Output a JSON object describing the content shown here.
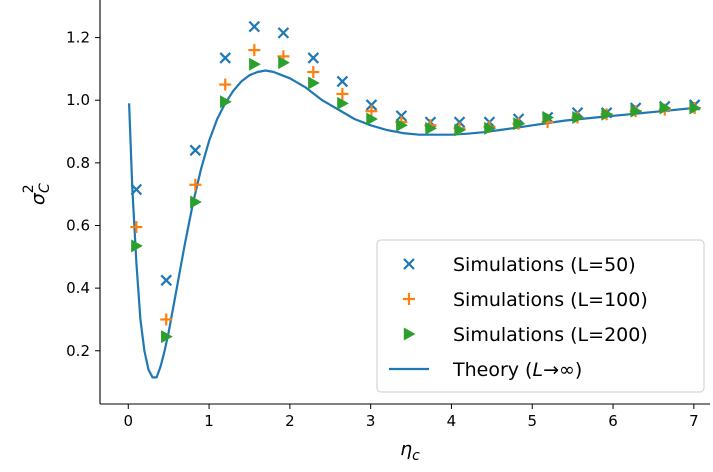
{
  "chart_data": {
    "type": "scatter",
    "xlabel": "η_c",
    "ylabel": "σ_C^2",
    "xlim": [
      -0.35,
      7.2
    ],
    "ylim": [
      0.03,
      1.32
    ],
    "x_ticks": [
      0,
      1,
      2,
      3,
      4,
      5,
      6,
      7
    ],
    "y_ticks": [
      0.2,
      0.4,
      0.6,
      0.8,
      1.0,
      1.2
    ],
    "x_tick_labels": [
      "0",
      "1",
      "2",
      "3",
      "4",
      "5",
      "6",
      "7"
    ],
    "y_tick_labels": [
      "0.2",
      "0.4",
      "0.6",
      "0.8",
      "1.0",
      "1.2"
    ],
    "legend_position": "lower right",
    "colors": {
      "blue": "#1f77b4",
      "orange": "#ff7f0e",
      "green": "#2ca02c",
      "theory": "#1f77b4"
    },
    "series": [
      {
        "name": "Simulations (L=50)",
        "marker": "x",
        "color": "#1f77b4",
        "x": [
          0.1,
          0.47,
          0.83,
          1.2,
          1.56,
          1.92,
          2.29,
          2.65,
          3.01,
          3.38,
          3.74,
          4.1,
          4.47,
          4.83,
          5.19,
          5.56,
          5.92,
          6.28,
          6.64,
          7.01
        ],
        "y": [
          0.715,
          0.425,
          0.84,
          1.135,
          1.235,
          1.215,
          1.135,
          1.06,
          0.985,
          0.95,
          0.93,
          0.93,
          0.93,
          0.94,
          0.945,
          0.96,
          0.96,
          0.975,
          0.98,
          0.985
        ]
      },
      {
        "name": "Simulations (L=100)",
        "marker": "+",
        "color": "#ff7f0e",
        "x": [
          0.1,
          0.47,
          0.83,
          1.2,
          1.56,
          1.92,
          2.29,
          2.65,
          3.01,
          3.38,
          3.74,
          4.1,
          4.47,
          4.83,
          5.19,
          5.56,
          5.92,
          6.28,
          6.64,
          7.01
        ],
        "y": [
          0.595,
          0.3,
          0.73,
          1.05,
          1.16,
          1.14,
          1.09,
          1.02,
          0.965,
          0.93,
          0.92,
          0.91,
          0.915,
          0.925,
          0.93,
          0.945,
          0.955,
          0.965,
          0.97,
          0.975
        ]
      },
      {
        "name": "Simulations (L=200)",
        "marker": "triangle-right",
        "color": "#2ca02c",
        "x": [
          0.1,
          0.47,
          0.83,
          1.2,
          1.56,
          1.92,
          2.29,
          2.65,
          3.01,
          3.38,
          3.74,
          4.1,
          4.47,
          4.83,
          5.19,
          5.56,
          5.92,
          6.28,
          6.64,
          7.01
        ],
        "y": [
          0.535,
          0.245,
          0.675,
          0.995,
          1.115,
          1.12,
          1.055,
          0.99,
          0.94,
          0.92,
          0.91,
          0.905,
          0.91,
          0.925,
          0.945,
          0.945,
          0.955,
          0.965,
          0.975,
          0.975
        ]
      },
      {
        "name": "Theory (L→∞)",
        "marker": "line",
        "color": "#1f77b4",
        "x": [
          0.01,
          0.05,
          0.1,
          0.15,
          0.2,
          0.25,
          0.3,
          0.35,
          0.4,
          0.45,
          0.5,
          0.6,
          0.7,
          0.8,
          0.9,
          1.0,
          1.1,
          1.2,
          1.3,
          1.4,
          1.5,
          1.6,
          1.7,
          1.8,
          1.9,
          2.0,
          2.2,
          2.4,
          2.6,
          2.8,
          3.0,
          3.2,
          3.4,
          3.6,
          3.8,
          4.0,
          4.2,
          4.4,
          4.6,
          4.8,
          5.0,
          5.4,
          5.8,
          6.2,
          6.6,
          7.0
        ],
        "y": [
          0.99,
          0.72,
          0.48,
          0.3,
          0.2,
          0.14,
          0.115,
          0.115,
          0.15,
          0.2,
          0.26,
          0.4,
          0.54,
          0.67,
          0.78,
          0.87,
          0.94,
          0.99,
          1.03,
          1.06,
          1.08,
          1.09,
          1.095,
          1.09,
          1.08,
          1.07,
          1.04,
          1.0,
          0.97,
          0.94,
          0.92,
          0.905,
          0.895,
          0.89,
          0.89,
          0.89,
          0.893,
          0.898,
          0.905,
          0.912,
          0.92,
          0.935,
          0.945,
          0.955,
          0.965,
          0.975
        ]
      }
    ]
  }
}
